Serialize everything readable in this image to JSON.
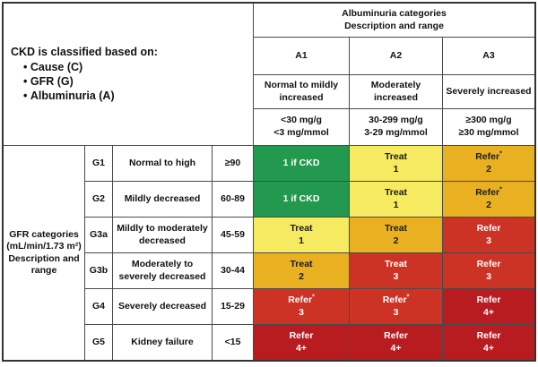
{
  "intro": {
    "heading": "CKD is classified based on:",
    "bullets": [
      "Cause (C)",
      "GFR (G)",
      "Albuminuria (A)"
    ]
  },
  "albuminuria": {
    "title_line1": "Albuminuria categories",
    "title_line2": "Description and range",
    "columns": [
      {
        "code": "A1",
        "description": "Normal to mildly increased",
        "range_line1": "<30 mg/g",
        "range_line2": "<3 mg/mmol"
      },
      {
        "code": "A2",
        "description": "Moderately increased",
        "range_line1": "30-299 mg/g",
        "range_line2": "3-29 mg/mmol"
      },
      {
        "code": "A3",
        "description": "Severely increased",
        "range_line1": "≥300 mg/g",
        "range_line2": "≥30 mg/mmol"
      }
    ]
  },
  "gfr": {
    "label_lines": [
      "GFR categories",
      "(mL/min/1.73 m²)",
      "Description and",
      "range"
    ]
  },
  "rows": [
    {
      "code": "G1",
      "description": "Normal to high",
      "range": "≥90",
      "cells": [
        {
          "line1": "1 if CKD",
          "sup": "",
          "line2": "",
          "risk": "green"
        },
        {
          "line1": "Treat",
          "sup": "",
          "line2": "1",
          "risk": "yellow"
        },
        {
          "line1": "Refer",
          "sup": "*",
          "line2": "2",
          "risk": "amber"
        }
      ]
    },
    {
      "code": "G2",
      "description": "Mildly decreased",
      "range": "60-89",
      "cells": [
        {
          "line1": "1 if CKD",
          "sup": "",
          "line2": "",
          "risk": "green"
        },
        {
          "line1": "Treat",
          "sup": "",
          "line2": "1",
          "risk": "yellow"
        },
        {
          "line1": "Refer",
          "sup": "*",
          "line2": "2",
          "risk": "amber"
        }
      ]
    },
    {
      "code": "G3a",
      "description": "Mildly to moderately decreased",
      "range": "45-59",
      "cells": [
        {
          "line1": "Treat",
          "sup": "",
          "line2": "1",
          "risk": "yellow"
        },
        {
          "line1": "Treat",
          "sup": "",
          "line2": "2",
          "risk": "amber"
        },
        {
          "line1": "Refer",
          "sup": "",
          "line2": "3",
          "risk": "red"
        }
      ]
    },
    {
      "code": "G3b",
      "description": "Moderately to severely decreased",
      "range": "30-44",
      "cells": [
        {
          "line1": "Treat",
          "sup": "",
          "line2": "2",
          "risk": "amber"
        },
        {
          "line1": "Treat",
          "sup": "",
          "line2": "3",
          "risk": "red"
        },
        {
          "line1": "Refer",
          "sup": "",
          "line2": "3",
          "risk": "red"
        }
      ]
    },
    {
      "code": "G4",
      "description": "Severely decreased",
      "range": "15-29",
      "cells": [
        {
          "line1": "Refer",
          "sup": "*",
          "line2": "3",
          "risk": "red"
        },
        {
          "line1": "Refer",
          "sup": "*",
          "line2": "3",
          "risk": "red"
        },
        {
          "line1": "Refer",
          "sup": "",
          "line2": "4+",
          "risk": "darkRed"
        }
      ]
    },
    {
      "code": "G5",
      "description": "Kidney failure",
      "range": "<15",
      "cells": [
        {
          "line1": "Refer",
          "sup": "",
          "line2": "4+",
          "risk": "darkRed"
        },
        {
          "line1": "Refer",
          "sup": "",
          "line2": "4+",
          "risk": "darkRed"
        },
        {
          "line1": "Refer",
          "sup": "",
          "line2": "4+",
          "risk": "darkRed"
        }
      ]
    }
  ],
  "colors": {
    "green": "#23984f",
    "yellow": "#f6ea60",
    "amber": "#e9b122",
    "red": "#cd3325",
    "darkRed": "#b91c20"
  },
  "text_colors": {
    "green": "#ffffff",
    "yellow": "#1a1a1a",
    "amber": "#1a1a1a",
    "red": "#ffffff",
    "darkRed": "#ffffff"
  },
  "chart_data": {
    "type": "heatmap",
    "x_categories": [
      "A1",
      "A2",
      "A3"
    ],
    "x_descriptions": [
      "Normal to mildly increased",
      "Moderately increased",
      "Severely increased"
    ],
    "x_ranges": [
      "<30 mg/g, <3 mg/mmol",
      "30-299 mg/g, 3-29 mg/mmol",
      "≥300 mg/g, ≥30 mg/mmol"
    ],
    "y_categories": [
      "G1",
      "G2",
      "G3a",
      "G3b",
      "G4",
      "G5"
    ],
    "y_descriptions": [
      "Normal to high",
      "Mildly decreased",
      "Mildly to moderately decreased",
      "Moderately to severely decreased",
      "Severely decreased",
      "Kidney failure"
    ],
    "y_ranges": [
      "≥90",
      "60-89",
      "45-59",
      "30-44",
      "15-29",
      "<15"
    ],
    "cell_labels": [
      [
        "1 if CKD",
        "Treat 1",
        "Refer* 2"
      ],
      [
        "1 if CKD",
        "Treat 1",
        "Refer* 2"
      ],
      [
        "Treat 1",
        "Treat 2",
        "Refer 3"
      ],
      [
        "Treat 2",
        "Treat 3",
        "Refer 3"
      ],
      [
        "Refer* 3",
        "Refer* 3",
        "Refer 4+"
      ],
      [
        "Refer 4+",
        "Refer 4+",
        "Refer 4+"
      ]
    ],
    "cell_risk_levels": [
      [
        "green",
        "yellow",
        "amber"
      ],
      [
        "green",
        "yellow",
        "amber"
      ],
      [
        "yellow",
        "amber",
        "red"
      ],
      [
        "amber",
        "red",
        "red"
      ],
      [
        "red",
        "red",
        "darkRed"
      ],
      [
        "darkRed",
        "darkRed",
        "darkRed"
      ]
    ],
    "legend_position": "none",
    "grid": true
  }
}
